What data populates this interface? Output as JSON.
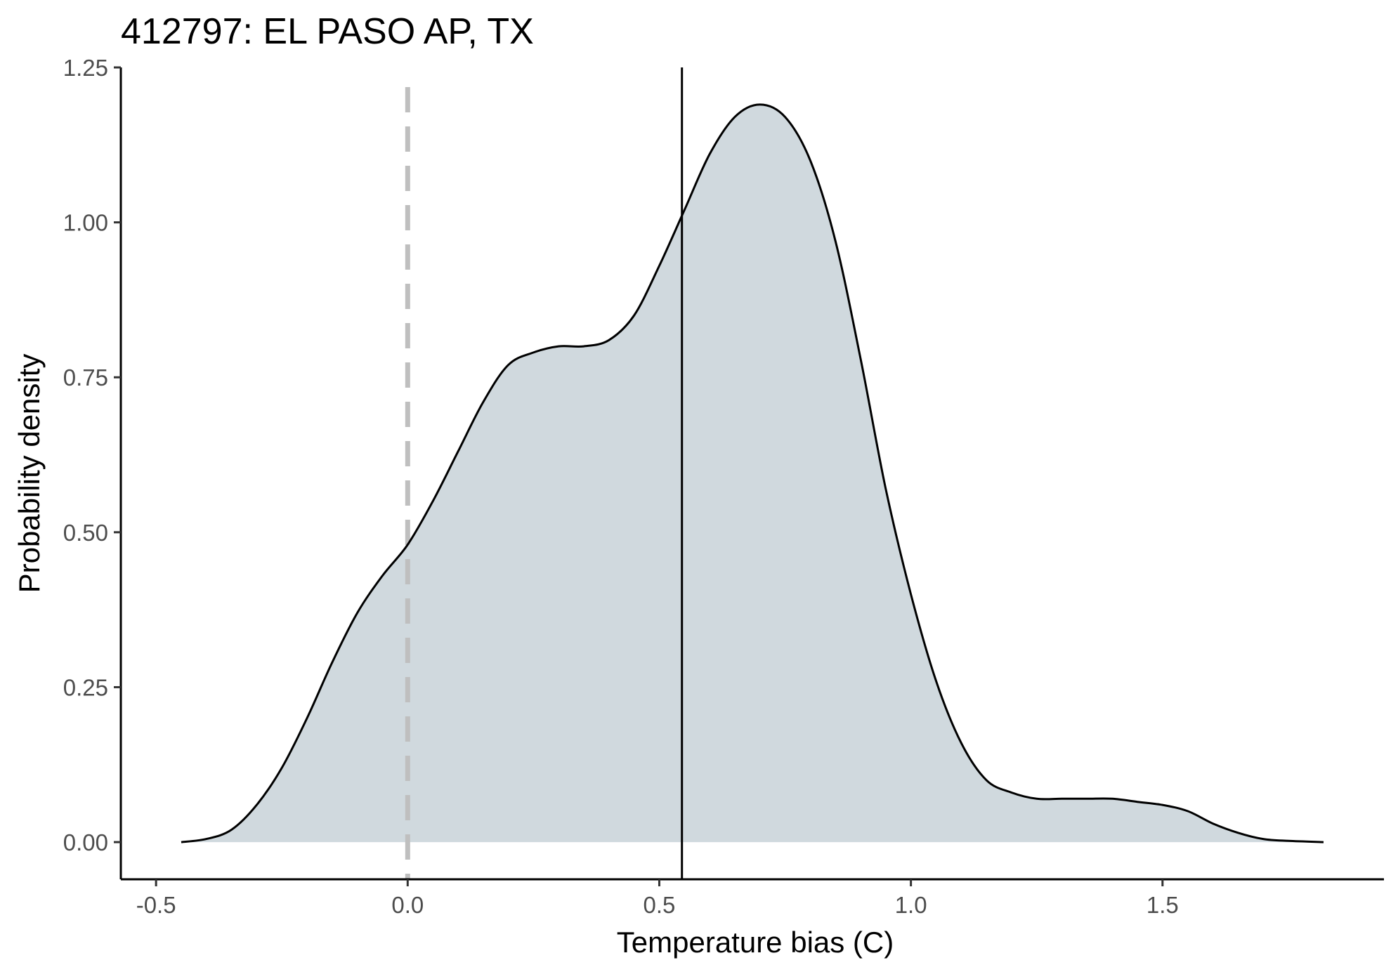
{
  "chart_data": {
    "type": "area",
    "title": "412797: EL PASO AP, TX",
    "xlabel": "Temperature bias (C)",
    "ylabel": "Probability density",
    "xlim": [
      -0.57,
      1.94
    ],
    "ylim": [
      -0.06,
      1.25
    ],
    "x_ticks": [
      -0.5,
      0.0,
      0.5,
      1.0,
      1.5
    ],
    "x_tick_labels": [
      "-0.5",
      "0.0",
      "0.5",
      "1.0",
      "1.5"
    ],
    "y_ticks": [
      0.0,
      0.25,
      0.5,
      0.75,
      1.0,
      1.25
    ],
    "y_tick_labels": [
      "0.00",
      "0.25",
      "0.50",
      "0.75",
      "1.00",
      "1.25"
    ],
    "grid": false,
    "legend": "none",
    "colors": {
      "fill": "#d0d9de",
      "line": "#000000",
      "reference_line": "#bfbfbf",
      "mean_line": "#000000"
    },
    "series": [
      {
        "x": [
          -0.45,
          -0.4,
          -0.35,
          -0.3,
          -0.25,
          -0.2,
          -0.15,
          -0.1,
          -0.05,
          0.0,
          0.05,
          0.1,
          0.15,
          0.2,
          0.25,
          0.3,
          0.35,
          0.4,
          0.45,
          0.5,
          0.55,
          0.6,
          0.65,
          0.7,
          0.75,
          0.8,
          0.85,
          0.9,
          0.95,
          1.0,
          1.05,
          1.1,
          1.15,
          1.2,
          1.25,
          1.3,
          1.35,
          1.4,
          1.45,
          1.5,
          1.55,
          1.6,
          1.65,
          1.7,
          1.75,
          1.82
        ],
        "values": [
          0.0,
          0.005,
          0.02,
          0.06,
          0.12,
          0.2,
          0.29,
          0.37,
          0.43,
          0.48,
          0.55,
          0.63,
          0.71,
          0.77,
          0.79,
          0.8,
          0.8,
          0.81,
          0.85,
          0.93,
          1.02,
          1.11,
          1.17,
          1.19,
          1.17,
          1.1,
          0.97,
          0.78,
          0.57,
          0.4,
          0.26,
          0.16,
          0.1,
          0.08,
          0.07,
          0.07,
          0.07,
          0.07,
          0.065,
          0.06,
          0.05,
          0.03,
          0.015,
          0.005,
          0.002,
          0.0
        ]
      }
    ],
    "reference_lines": [
      {
        "x": 0.0,
        "style": "dashed"
      },
      {
        "x": 0.545,
        "style": "solid"
      }
    ]
  }
}
